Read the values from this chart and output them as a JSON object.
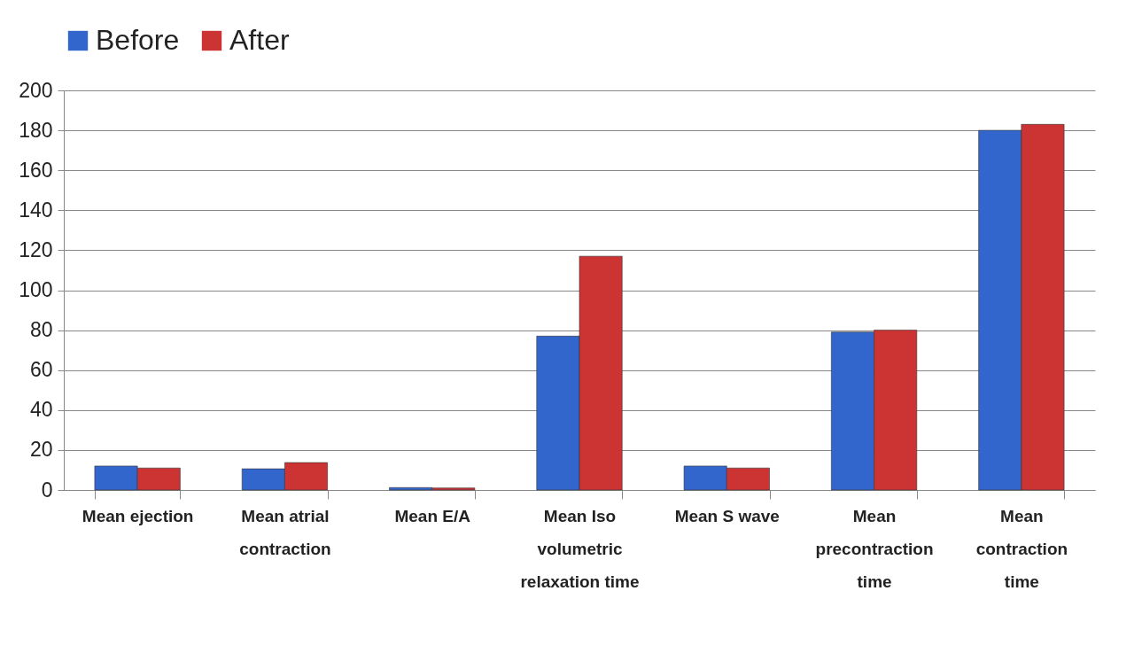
{
  "chart_data": {
    "type": "bar",
    "categories": [
      "Mean ejection",
      "Mean atrial contraction",
      "Mean E/A",
      "Mean Iso volumetric relaxation time",
      "Mean S wave",
      "Mean precontraction time",
      "Mean contraction time"
    ],
    "series": [
      {
        "name": "Before",
        "color": "#3366cc",
        "values": [
          12,
          10.6,
          1.2,
          77,
          12,
          79,
          180
        ]
      },
      {
        "name": "After",
        "color": "#cc3333",
        "values": [
          11,
          13.7,
          1,
          117,
          11,
          80,
          183
        ]
      }
    ],
    "ylim": [
      0,
      200
    ],
    "yticks": [
      0,
      20,
      40,
      60,
      80,
      100,
      120,
      140,
      160,
      180,
      200
    ],
    "grid": "y",
    "legend": "top"
  }
}
